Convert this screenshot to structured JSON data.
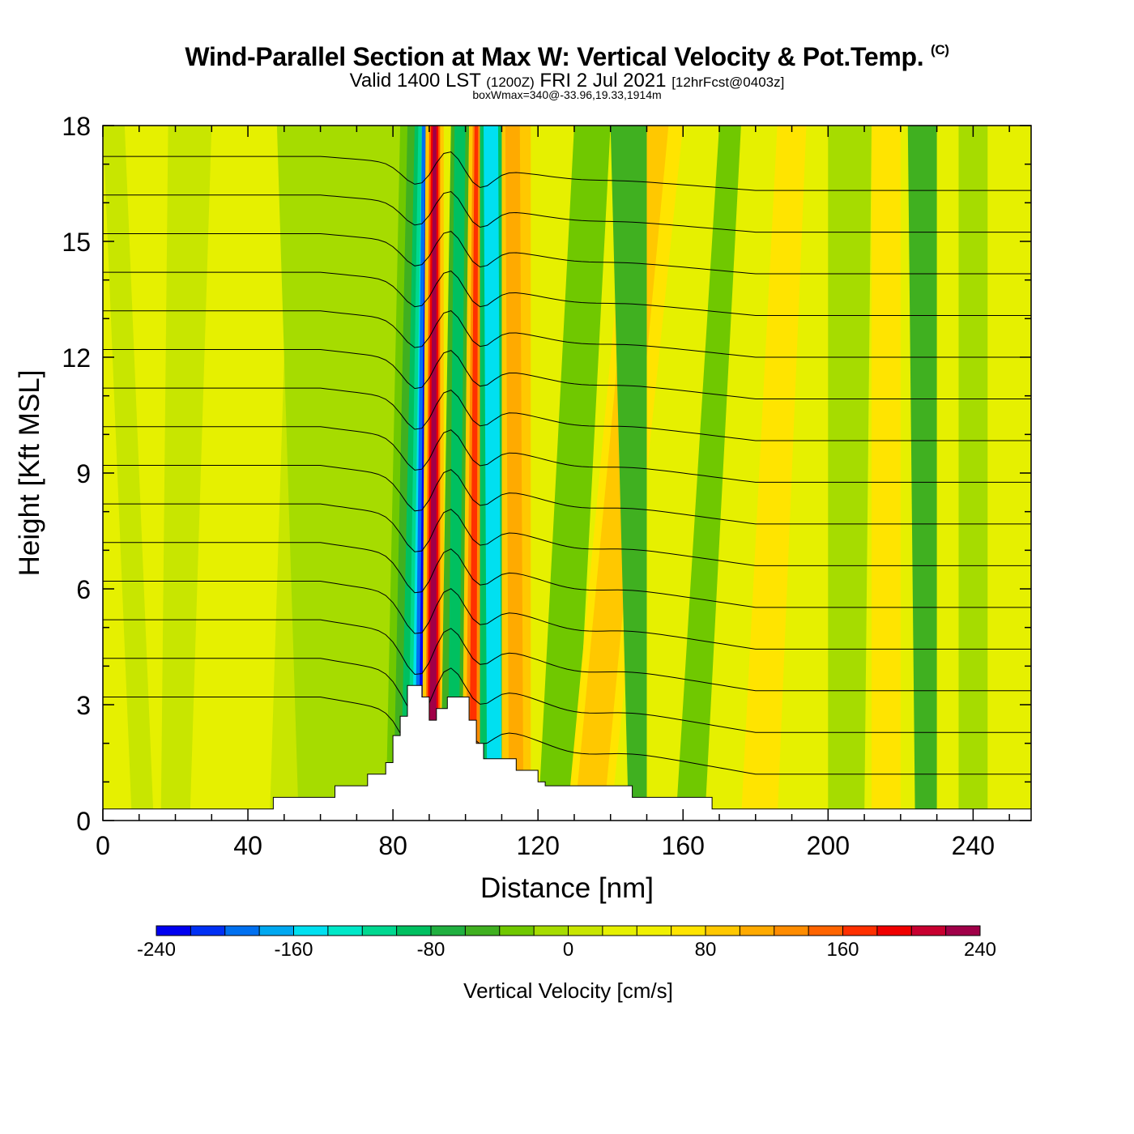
{
  "title": {
    "main": "Wind-Parallel Section at Max W: Vertical Velocity & Pot.Temp.",
    "copyright": "(C)",
    "valid_prefix": "Valid 1400 LST",
    "valid_utc": "(1200Z)",
    "valid_date": "FRI 2 Jul 2021",
    "forecast": "[12hrFcst@0403z]",
    "box_info": "boxWmax=340@-33.96,19.33,1914m"
  },
  "chart_data": {
    "type": "heatmap",
    "xlabel": "Distance [nm]",
    "ylabel": "Height [Kft MSL]",
    "xlim": [
      0,
      256
    ],
    "ylim": [
      0,
      18
    ],
    "xticks": [
      0,
      40,
      80,
      120,
      160,
      200,
      240
    ],
    "yticks": [
      0,
      3,
      6,
      9,
      12,
      15,
      18
    ],
    "fill_variable": "vertical velocity",
    "contour_variable": "potential temperature",
    "contour_levels": [
      18,
      20,
      22,
      24,
      26,
      28,
      30,
      32,
      34,
      36,
      38,
      40,
      42,
      44,
      46
    ],
    "terrain_kft": [
      [
        0,
        0.3
      ],
      [
        47,
        0.3
      ],
      [
        47,
        0.6
      ],
      [
        64,
        0.6
      ],
      [
        64,
        0.9
      ],
      [
        73,
        0.9
      ],
      [
        73,
        1.2
      ],
      [
        78,
        1.2
      ],
      [
        78,
        1.5
      ],
      [
        80,
        1.5
      ],
      [
        80,
        2.2
      ],
      [
        82,
        2.2
      ],
      [
        82,
        2.7
      ],
      [
        84,
        2.7
      ],
      [
        84,
        3.5
      ],
      [
        88,
        3.5
      ],
      [
        88,
        3.2
      ],
      [
        90,
        3.2
      ],
      [
        90,
        2.6
      ],
      [
        92,
        2.6
      ],
      [
        92,
        2.9
      ],
      [
        95,
        2.9
      ],
      [
        95,
        3.2
      ],
      [
        101,
        3.2
      ],
      [
        101,
        2.6
      ],
      [
        103,
        2.6
      ],
      [
        103,
        2.0
      ],
      [
        105,
        2.0
      ],
      [
        105,
        1.6
      ],
      [
        114,
        1.6
      ],
      [
        114,
        1.3
      ],
      [
        120,
        1.3
      ],
      [
        120,
        1.0
      ],
      [
        122,
        1.0
      ],
      [
        122,
        0.9
      ],
      [
        146,
        0.9
      ],
      [
        146,
        0.6
      ],
      [
        168,
        0.6
      ],
      [
        168,
        0.3
      ],
      [
        256,
        0.3
      ]
    ],
    "colorbar": {
      "title": "Vertical Velocity [cm/s]",
      "min": -240,
      "max": 240,
      "step": 20,
      "tick_labels": [
        "-240",
        "-160",
        "-80",
        "0",
        "80",
        "160",
        "240"
      ],
      "colors": [
        "#0000f0",
        "#0030f5",
        "#0070f0",
        "#00a8f0",
        "#00e0f0",
        "#00e8c8",
        "#00d890",
        "#00c060",
        "#20b040",
        "#40b020",
        "#70c800",
        "#a6dc00",
        "#c8e600",
        "#e6f000",
        "#f0f000",
        "#ffe400",
        "#ffc800",
        "#ffaa00",
        "#ff8c00",
        "#ff6400",
        "#ff3000",
        "#f00000",
        "#c80030",
        "#a00048"
      ]
    }
  }
}
